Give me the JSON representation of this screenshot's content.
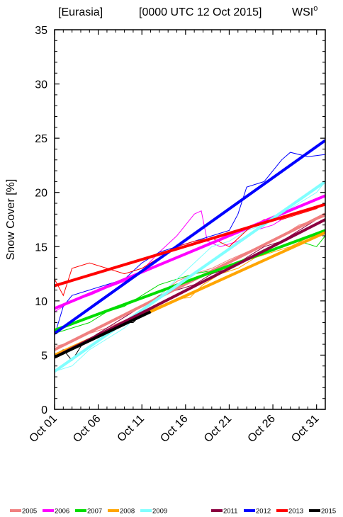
{
  "chart_data": {
    "type": "line",
    "title_left": "[Eurasia]",
    "title_center": "[0000 UTC 12 Oct 2015]",
    "title_right": "WSI",
    "title_right_sup": "o",
    "ylabel": "Snow Cover [%]",
    "xlabel": "",
    "ylim": [
      0,
      35
    ],
    "yticks": [
      0,
      5,
      10,
      15,
      20,
      25,
      30,
      35
    ],
    "ytick_labels": [
      "0",
      "5",
      "10",
      "15",
      "20",
      "25",
      "30",
      "35"
    ],
    "xlim": [
      1,
      32
    ],
    "xticks": [
      1,
      6,
      11,
      16,
      21,
      26,
      31
    ],
    "xtick_labels": [
      "Oct 01",
      "Oct 06",
      "Oct 11",
      "Oct 16",
      "Oct 21",
      "Oct 26",
      "Oct 31"
    ],
    "grid": false,
    "legend_position": "bottom",
    "series": [
      {
        "name": "2005",
        "color": "#f08080",
        "trend": [
          5.5,
          18.0
        ],
        "points": [
          [
            1,
            5.8
          ],
          [
            3,
            6.2
          ],
          [
            5,
            7.0
          ],
          [
            7,
            7.5
          ],
          [
            9,
            8.2
          ],
          [
            11,
            9.0
          ],
          [
            13,
            10.5
          ],
          [
            15,
            11.8
          ],
          [
            17,
            12.5
          ],
          [
            19,
            13.0
          ],
          [
            21,
            13.8
          ],
          [
            23,
            14.5
          ],
          [
            25,
            15.2
          ],
          [
            27,
            16.0
          ],
          [
            29,
            17.0
          ],
          [
            31,
            17.5
          ],
          [
            32,
            17.8
          ]
        ]
      },
      {
        "name": "2006",
        "color": "#ff00ff",
        "trend": [
          9.3,
          19.7
        ],
        "points": [
          [
            1,
            9.0
          ],
          [
            3,
            10.0
          ],
          [
            5,
            10.5
          ],
          [
            7,
            11.2
          ],
          [
            9,
            11.8
          ],
          [
            11,
            12.8
          ],
          [
            13,
            14.5
          ],
          [
            15,
            16.0
          ],
          [
            16,
            17.0
          ],
          [
            17,
            18.0
          ],
          [
            17.8,
            18.3
          ],
          [
            18.5,
            15.5
          ],
          [
            20,
            15.0
          ],
          [
            22,
            15.5
          ],
          [
            24,
            16.5
          ],
          [
            26,
            17.0
          ],
          [
            28,
            18.0
          ],
          [
            30,
            18.5
          ],
          [
            32,
            19.0
          ]
        ]
      },
      {
        "name": "2007",
        "color": "#00dd00",
        "trend": [
          7.3,
          16.5
        ],
        "points": [
          [
            1,
            7.0
          ],
          [
            3,
            7.5
          ],
          [
            5,
            8.0
          ],
          [
            7,
            9.0
          ],
          [
            9,
            9.5
          ],
          [
            11,
            10.5
          ],
          [
            13,
            11.5
          ],
          [
            15,
            12.0
          ],
          [
            17,
            12.5
          ],
          [
            19,
            12.8
          ],
          [
            21,
            13.2
          ],
          [
            23,
            13.8
          ],
          [
            25,
            14.5
          ],
          [
            27,
            15.0
          ],
          [
            29,
            15.5
          ],
          [
            31,
            15.0
          ],
          [
            32,
            16.0
          ]
        ]
      },
      {
        "name": "2008",
        "color": "#ffa500",
        "trend": [
          5.0,
          16.3
        ],
        "points": [
          [
            1,
            5.0
          ],
          [
            3,
            5.8
          ],
          [
            5,
            6.5
          ],
          [
            7,
            7.2
          ],
          [
            9,
            8.0
          ],
          [
            11,
            8.8
          ],
          [
            13,
            9.5
          ],
          [
            15,
            10.2
          ],
          [
            16.5,
            10.3
          ],
          [
            18,
            11.5
          ],
          [
            20,
            12.5
          ],
          [
            22,
            13.0
          ],
          [
            24,
            14.0
          ],
          [
            26,
            14.5
          ],
          [
            28,
            15.0
          ],
          [
            30,
            15.8
          ],
          [
            32,
            16.3
          ]
        ]
      },
      {
        "name": "2009",
        "color": "#80ffff",
        "trend": [
          3.5,
          21.0
        ],
        "points": [
          [
            1,
            3.5
          ],
          [
            3,
            4.0
          ],
          [
            5,
            5.5
          ],
          [
            7,
            6.5
          ],
          [
            9,
            7.5
          ],
          [
            11,
            9.0
          ],
          [
            13,
            10.5
          ],
          [
            15,
            12.0
          ],
          [
            17,
            13.5
          ],
          [
            19,
            15.0
          ],
          [
            21,
            15.5
          ],
          [
            23,
            16.5
          ],
          [
            25,
            17.0
          ],
          [
            27,
            18.0
          ],
          [
            29,
            19.0
          ],
          [
            31,
            20.0
          ],
          [
            32,
            21.0
          ]
        ]
      },
      {
        "name": "2011",
        "color": "#8b0040",
        "trend": [
          4.8,
          17.5
        ],
        "points": [
          [
            1,
            5.0
          ],
          [
            3,
            5.5
          ],
          [
            5,
            6.5
          ],
          [
            7,
            7.5
          ],
          [
            9,
            8.5
          ],
          [
            11,
            9.5
          ],
          [
            13,
            10.5
          ],
          [
            15,
            11.0
          ],
          [
            17,
            11.5
          ],
          [
            19,
            12.5
          ],
          [
            21,
            13.0
          ],
          [
            23,
            14.0
          ],
          [
            25,
            15.0
          ],
          [
            27,
            15.5
          ],
          [
            29,
            16.5
          ],
          [
            31,
            17.5
          ],
          [
            32,
            18.0
          ]
        ]
      },
      {
        "name": "2012",
        "color": "#0000ff",
        "trend": [
          7.0,
          24.8
        ],
        "points": [
          [
            1,
            6.8
          ],
          [
            2,
            9.5
          ],
          [
            3,
            10.5
          ],
          [
            5,
            11.0
          ],
          [
            7,
            11.5
          ],
          [
            9,
            12.0
          ],
          [
            11,
            13.5
          ],
          [
            13,
            14.5
          ],
          [
            15,
            15.0
          ],
          [
            17,
            15.5
          ],
          [
            19,
            16.0
          ],
          [
            21,
            16.5
          ],
          [
            22,
            18.0
          ],
          [
            23,
            20.5
          ],
          [
            25,
            21.0
          ],
          [
            26,
            22.0
          ],
          [
            27,
            23.0
          ],
          [
            28,
            23.7
          ],
          [
            30,
            23.3
          ],
          [
            32,
            23.5
          ]
        ]
      },
      {
        "name": "2013",
        "color": "#ff0000",
        "trend": [
          11.4,
          18.9
        ],
        "points": [
          [
            1,
            12.0
          ],
          [
            2,
            10.5
          ],
          [
            3,
            13.0
          ],
          [
            5,
            13.5
          ],
          [
            7,
            13.0
          ],
          [
            9,
            12.5
          ],
          [
            11,
            13.0
          ],
          [
            13,
            14.0
          ],
          [
            15,
            15.0
          ],
          [
            17,
            15.5
          ],
          [
            19,
            15.8
          ],
          [
            21,
            15.0
          ],
          [
            23,
            16.5
          ],
          [
            25,
            17.5
          ],
          [
            27,
            17.5
          ],
          [
            29,
            18.0
          ],
          [
            31,
            18.5
          ],
          [
            32,
            19.0
          ]
        ]
      },
      {
        "name": "2015",
        "color": "#000000",
        "trend": [
          4.8,
          9.0
        ],
        "trend_end": 12,
        "points": [
          [
            1,
            5.0
          ],
          [
            2,
            5.5
          ],
          [
            3,
            4.5
          ],
          [
            4,
            5.8
          ],
          [
            5,
            6.5
          ],
          [
            6,
            7.0
          ],
          [
            7,
            6.8
          ],
          [
            8,
            7.5
          ],
          [
            9,
            8.0
          ],
          [
            10,
            8.0
          ],
          [
            11,
            8.8
          ],
          [
            12,
            9.0
          ]
        ]
      }
    ]
  }
}
